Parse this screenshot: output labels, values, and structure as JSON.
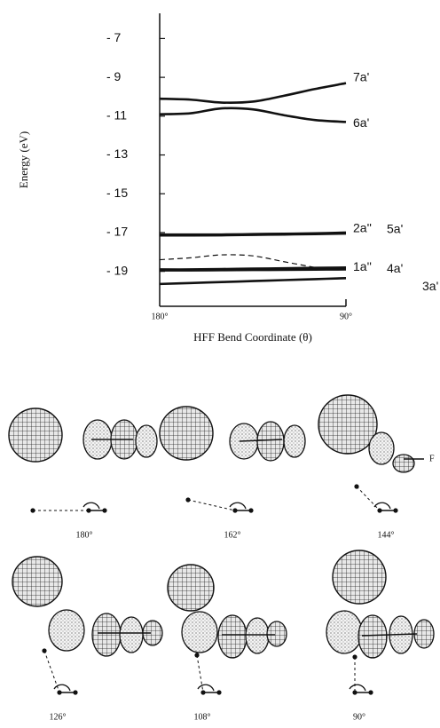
{
  "chart_data": {
    "type": "line",
    "y_label": "Energy (eV)",
    "x_label": "HFF Bend Coordinate (θ)",
    "x": [
      180,
      165,
      150,
      135,
      120,
      105,
      90
    ],
    "xlim": [
      180,
      90
    ],
    "xticks": [
      {
        "value": 180,
        "label": "180°"
      },
      {
        "value": 90,
        "label": "90°"
      }
    ],
    "ylim": [
      -20.8,
      -5.7
    ],
    "yticks": [
      {
        "value": -7,
        "label": "- 7"
      },
      {
        "value": -9,
        "label": "- 9"
      },
      {
        "value": -11,
        "label": "- 11"
      },
      {
        "value": -13,
        "label": "- 13"
      },
      {
        "value": -15,
        "label": "- 15"
      },
      {
        "value": -17,
        "label": "- 17"
      },
      {
        "value": -19,
        "label": "- 19"
      }
    ],
    "series": [
      {
        "name": "7a'",
        "color": "#111111",
        "values": [
          -10.1,
          -10.15,
          -10.3,
          -10.25,
          -9.95,
          -9.6,
          -9.3
        ]
      },
      {
        "name": "6a'",
        "color": "#111111",
        "values": [
          -10.9,
          -10.85,
          -10.6,
          -10.65,
          -10.95,
          -11.2,
          -11.3
        ]
      },
      {
        "name": "2a''",
        "color": "#111111",
        "values": [
          -17.1,
          -17.1,
          -17.1,
          -17.08,
          -17.06,
          -17.04,
          -17.0
        ]
      },
      {
        "name": "5a'",
        "color": "#111111",
        "values": [
          -17.15,
          -17.15,
          -17.14,
          -17.12,
          -17.1,
          -17.08,
          -17.05
        ]
      },
      {
        "name": "1a''",
        "color": "#111111",
        "values": [
          -18.9,
          -18.9,
          -18.88,
          -18.86,
          -18.84,
          -18.82,
          -18.8
        ]
      },
      {
        "name": "4a'",
        "color": "#111111",
        "values": [
          -18.95,
          -18.95,
          -18.94,
          -18.93,
          -18.92,
          -18.91,
          -18.9
        ]
      },
      {
        "name": "3a'",
        "color": "#111111",
        "values": [
          -19.65,
          -19.6,
          -19.55,
          -19.5,
          -19.45,
          -19.4,
          -19.35
        ]
      },
      {
        "color": "#111111",
        "dashed": true,
        "values": [
          -18.4,
          -18.3,
          -18.15,
          -18.2,
          -18.5,
          -18.8,
          null
        ]
      }
    ]
  },
  "orbital_panels": {
    "labels": [
      "180°",
      "162°",
      "144°",
      "126°",
      "108°",
      "90°"
    ],
    "atom_label": "F"
  }
}
